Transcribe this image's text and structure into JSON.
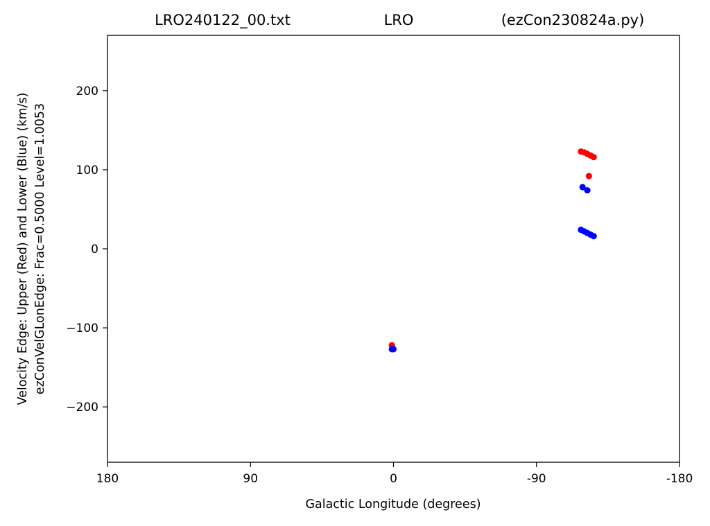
{
  "chart_data": {
    "type": "scatter",
    "title_parts": {
      "left": "LRO240122_00.txt",
      "center": "LRO",
      "right": "(ezCon230824a.py)"
    },
    "xlabel": "Galactic Longitude (degrees)",
    "ylabel_lines": [
      "Velocity Edge: Upper (Red) and Lower (Blue) (km/s)",
      "ezConVelGLonEdge: Frac=0.5000 Level=1.0053"
    ],
    "xlim": [
      180,
      -180
    ],
    "ylim": [
      -270,
      270
    ],
    "xticks": [
      {
        "value": 180,
        "label": "180"
      },
      {
        "value": 90,
        "label": "90"
      },
      {
        "value": 0,
        "label": "0"
      },
      {
        "value": -90,
        "label": "-90"
      },
      {
        "value": -180,
        "label": "-180"
      }
    ],
    "yticks": [
      {
        "value": 200,
        "label": "200"
      },
      {
        "value": 100,
        "label": "100"
      },
      {
        "value": 0,
        "label": "0"
      },
      {
        "value": -100,
        "label": "−100"
      },
      {
        "value": -200,
        "label": "−200"
      }
    ],
    "grid": false,
    "series": [
      {
        "color": "#ff0000",
        "x": [
          1,
          -118,
          -120,
          -122,
          -124,
          -126,
          -123
        ],
        "y": [
          -122,
          123,
          122,
          120,
          118,
          116,
          92
        ]
      },
      {
        "color": "#0000ff",
        "x": [
          1,
          0,
          -119,
          -122,
          -118,
          -120,
          -122,
          -124,
          -126
        ],
        "y": [
          -127,
          -127,
          78,
          74,
          24,
          22,
          20,
          18,
          16
        ]
      }
    ]
  }
}
